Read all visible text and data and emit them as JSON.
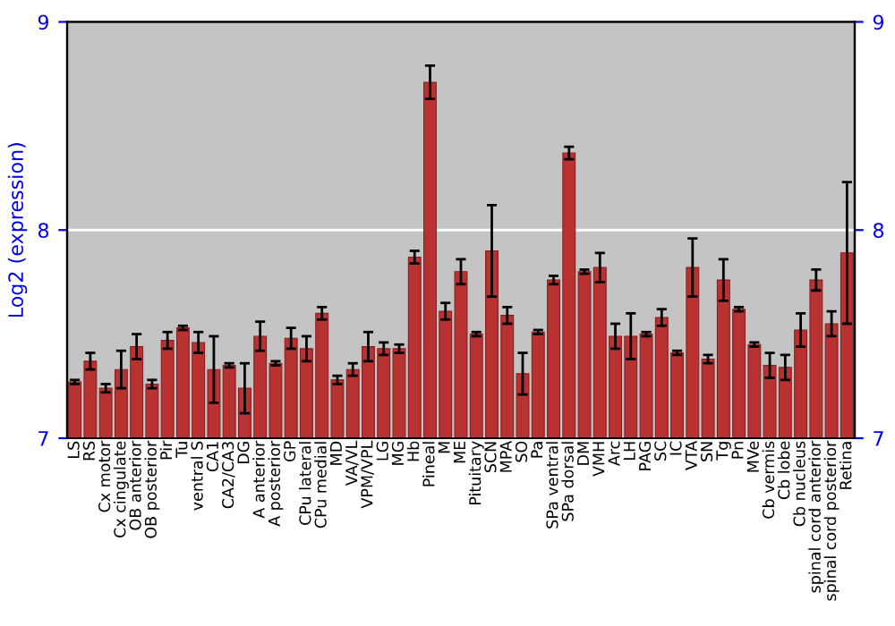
{
  "chart_data": {
    "type": "bar",
    "ylabel": "Log2 (expression)",
    "categories": [
      "LS",
      "RS",
      "Cx motor",
      "Cx cingulate",
      "OB anterior",
      "OB posterior",
      "Pir",
      "Tu",
      "ventral S",
      "CA1",
      "CA2/CA3",
      "DG",
      "A anterior",
      "A posterior",
      "GP",
      "CPu lateral",
      "CPu medial",
      "MD",
      "VA/VL",
      "VPM/VPL",
      "LG",
      "MG",
      "Hb",
      "Pineal",
      "M",
      "ME",
      "Pituitary",
      "SCN",
      "MPA",
      "SO",
      "Pa",
      "SPa ventral",
      "SPa dorsal",
      "DM",
      "VMH",
      "Arc",
      "LH",
      "PAG",
      "SC",
      "IC",
      "VTA",
      "SN",
      "Tg",
      "Pn",
      "MVe",
      "Cb vermis",
      "Cb lobe",
      "Cb nucleus",
      "spinal cord anterior",
      "spinal cord posterior",
      "Retina"
    ],
    "values": [
      7.27,
      7.37,
      7.24,
      7.33,
      7.44,
      7.26,
      7.47,
      7.53,
      7.46,
      7.33,
      7.35,
      7.24,
      7.49,
      7.36,
      7.48,
      7.43,
      7.6,
      7.28,
      7.33,
      7.44,
      7.43,
      7.43,
      7.87,
      8.71,
      7.61,
      7.8,
      7.5,
      7.9,
      7.59,
      7.31,
      7.51,
      7.76,
      8.37,
      7.8,
      7.82,
      7.49,
      7.49,
      7.5,
      7.58,
      7.41,
      7.82,
      7.38,
      7.76,
      7.62,
      7.45,
      7.35,
      7.34,
      7.52,
      7.76,
      7.55,
      7.89
    ],
    "errors": [
      0.01,
      0.04,
      0.02,
      0.09,
      0.06,
      0.02,
      0.04,
      0.01,
      0.05,
      0.16,
      0.01,
      0.12,
      0.07,
      0.01,
      0.05,
      0.06,
      0.03,
      0.02,
      0.03,
      0.07,
      0.03,
      0.02,
      0.03,
      0.08,
      0.04,
      0.06,
      0.01,
      0.22,
      0.04,
      0.1,
      0.01,
      0.02,
      0.03,
      0.01,
      0.07,
      0.06,
      0.11,
      0.01,
      0.04,
      0.01,
      0.14,
      0.02,
      0.1,
      0.01,
      0.01,
      0.06,
      0.06,
      0.08,
      0.05,
      0.06,
      0.34
    ],
    "color": "#b83232",
    "ylim": [
      7,
      9
    ],
    "yticks": [
      7,
      8,
      9
    ],
    "y2lim": [
      7,
      9
    ],
    "y2ticks": [
      7,
      8,
      9
    ],
    "grid": "y"
  }
}
